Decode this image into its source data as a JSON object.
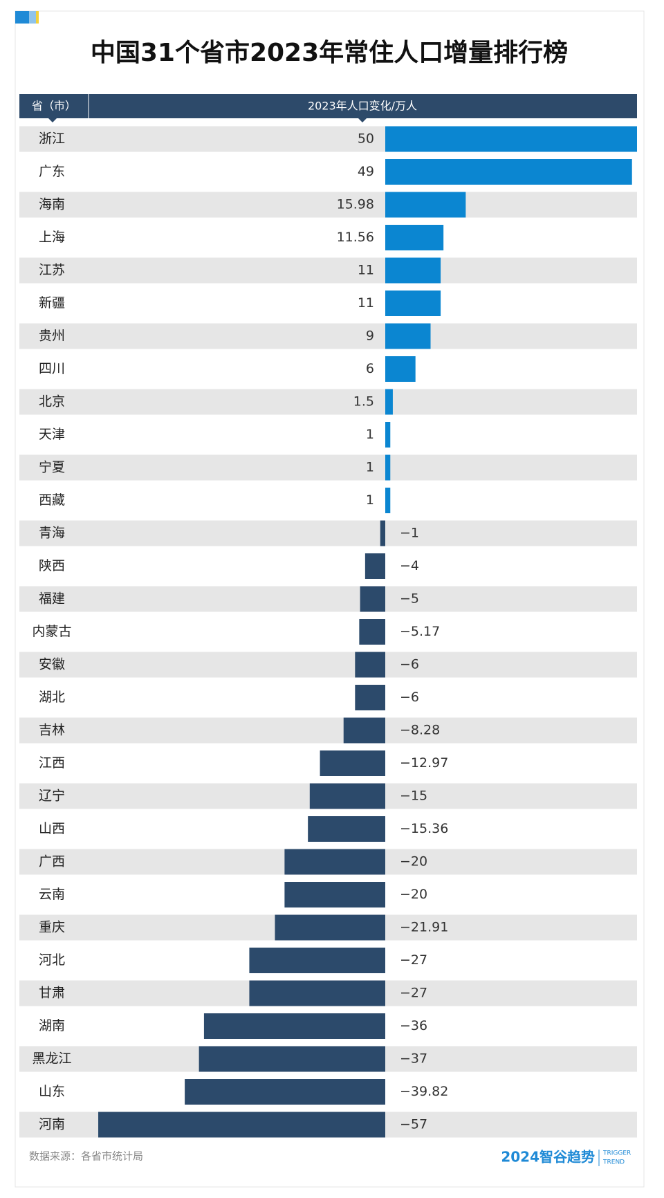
{
  "chart_data": {
    "type": "bar",
    "orientation": "horizontal",
    "title": "中国31个省市2023年常住人口增量排行榜",
    "category_header": "省（市）",
    "value_header": "2023年人口变化/万人",
    "categories": [
      "浙江",
      "广东",
      "海南",
      "上海",
      "江苏",
      "新疆",
      "贵州",
      "四川",
      "北京",
      "天津",
      "宁夏",
      "西藏",
      "青海",
      "陕西",
      "福建",
      "内蒙古",
      "安徽",
      "湖北",
      "吉林",
      "江西",
      "辽宁",
      "山西",
      "广西",
      "云南",
      "重庆",
      "河北",
      "甘肃",
      "湖南",
      "黑龙江",
      "山东",
      "河南"
    ],
    "values": [
      50,
      49,
      15.98,
      11.56,
      11,
      11,
      9,
      6,
      1.5,
      1,
      1,
      1,
      -1,
      -4,
      -5,
      -5.17,
      -6,
      -6,
      -8.28,
      -12.97,
      -15,
      -15.36,
      -20,
      -20,
      -21.91,
      -27,
      -27,
      -36,
      -37,
      -39.82,
      -57
    ],
    "value_labels": [
      "50",
      "49",
      "15.98",
      "11.56",
      "11",
      "11",
      "9",
      "6",
      "1.5",
      "1",
      "1",
      "1",
      "−1",
      "−4",
      "−5",
      "−5.17",
      "−6",
      "−6",
      "−8.28",
      "−12.97",
      "−15",
      "−15.36",
      "−20",
      "−20",
      "−21.91",
      "−27",
      "−27",
      "−36",
      "−37",
      "−39.82",
      "−57"
    ],
    "color": "#0b86d1",
    "negative_color": "#2c4a6b",
    "source": "数据来源：各省市统计局",
    "logo": "2024智谷趋势",
    "logo_sub": [
      "TRIGGER",
      "TREND"
    ]
  }
}
